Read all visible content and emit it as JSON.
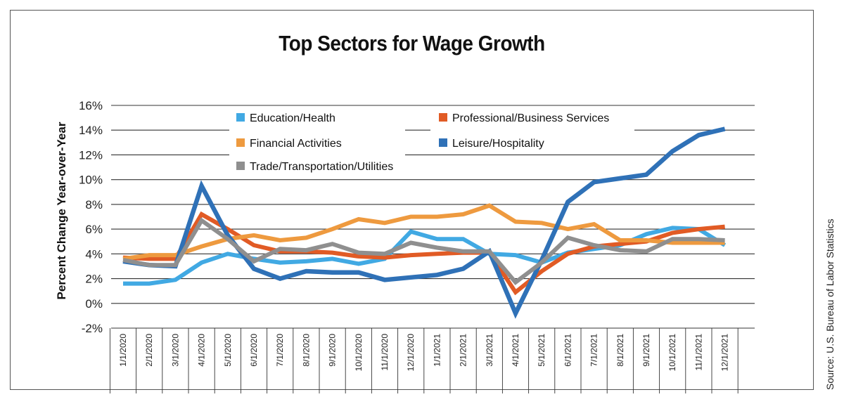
{
  "chart_data": {
    "type": "line",
    "title": "Top Sectors for Wage Growth",
    "ylabel": "Percent Change Year-over-Year",
    "xlabel": "",
    "source": "Source: U.S. Bureau of Labor Statistics",
    "ylim": [
      -2,
      16
    ],
    "yticks": [
      -2,
      0,
      2,
      4,
      6,
      8,
      10,
      12,
      14,
      16
    ],
    "ytick_labels": [
      "-2%",
      "0%",
      "2%",
      "4%",
      "6%",
      "8%",
      "10%",
      "12%",
      "14%",
      "16%"
    ],
    "grid": "horizontal",
    "legend_placement": "top-inside",
    "categories": [
      "1/1/2020",
      "2/1/2020",
      "3/1/2020",
      "4/1/2020",
      "5/1/2020",
      "6/1/2020",
      "7/1/2020",
      "8/1/2020",
      "9/1/2020",
      "10/1/2020",
      "11/1/2020",
      "12/1/2020",
      "1/1/2021",
      "2/1/2021",
      "3/1/2021",
      "4/1/2021",
      "5/1/2021",
      "6/1/2021",
      "7/1/2021",
      "8/1/2021",
      "9/1/2021",
      "10/1/2021",
      "11/1/2021",
      "12/1/2021"
    ],
    "series": [
      {
        "name": "Education/Health",
        "color": "#41a9e3",
        "values": [
          1.6,
          1.6,
          1.9,
          3.3,
          4.0,
          3.6,
          3.3,
          3.4,
          3.6,
          3.2,
          3.6,
          5.8,
          5.2,
          5.2,
          4.0,
          3.9,
          3.3,
          4.1,
          4.4,
          4.7,
          5.6,
          6.1,
          6.0,
          4.7
        ]
      },
      {
        "name": "Professional/Business Services",
        "color": "#e15b25",
        "values": [
          3.7,
          3.6,
          3.6,
          7.2,
          6.0,
          4.7,
          4.2,
          4.2,
          4.1,
          3.8,
          3.7,
          3.9,
          4.0,
          4.1,
          4.1,
          0.9,
          2.6,
          4.0,
          4.6,
          4.8,
          5.0,
          5.7,
          6.0,
          6.2
        ]
      },
      {
        "name": "Financial Activities",
        "color": "#ee9a3f",
        "values": [
          3.6,
          3.9,
          3.9,
          4.6,
          5.2,
          5.5,
          5.1,
          5.3,
          6.0,
          6.8,
          6.5,
          7.0,
          7.0,
          7.2,
          7.9,
          6.6,
          6.5,
          6.0,
          6.4,
          5.1,
          5.1,
          4.9,
          4.9,
          4.9
        ]
      },
      {
        "name": "Leisure/Hospitality",
        "color": "#2f71b7",
        "values": [
          3.4,
          3.1,
          3.0,
          9.5,
          5.5,
          2.8,
          2.0,
          2.6,
          2.5,
          2.5,
          1.9,
          2.1,
          2.3,
          2.8,
          4.2,
          -0.8,
          3.5,
          8.2,
          9.8,
          10.1,
          10.4,
          12.3,
          13.6,
          14.1
        ]
      },
      {
        "name": "Trade/Transportation/Utilities",
        "color": "#8f8f8f",
        "values": [
          3.5,
          3.1,
          3.1,
          6.7,
          5.2,
          3.4,
          4.4,
          4.3,
          4.8,
          4.1,
          4.0,
          4.9,
          4.5,
          4.2,
          4.2,
          1.7,
          3.3,
          5.3,
          4.7,
          4.3,
          4.2,
          5.2,
          5.2,
          5.1
        ]
      }
    ]
  }
}
